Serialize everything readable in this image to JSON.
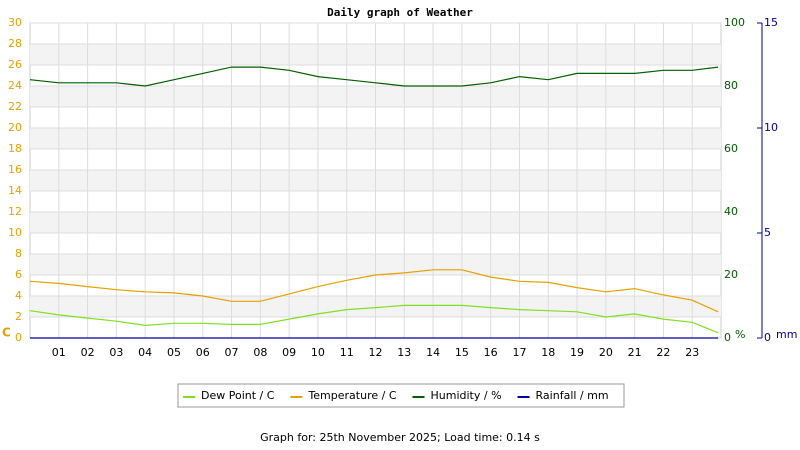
{
  "chart_data": {
    "type": "line",
    "title": "Daily graph of Weather",
    "footer": "Graph for: 25th November 2025; Load time: 0.14 s",
    "y_label": "C",
    "y2_label": "%",
    "y3_label": "mm",
    "x": [
      0,
      1,
      2,
      3,
      4,
      5,
      6,
      7,
      8,
      9,
      10,
      11,
      12,
      13,
      14,
      15,
      16,
      17,
      18,
      19,
      20,
      21,
      22,
      23,
      23.9
    ],
    "xlim": [
      0,
      24
    ],
    "xticks": [
      {
        "value": 1,
        "label": "01"
      },
      {
        "value": 2,
        "label": "02"
      },
      {
        "value": 3,
        "label": "03"
      },
      {
        "value": 4,
        "label": "04"
      },
      {
        "value": 5,
        "label": "05"
      },
      {
        "value": 6,
        "label": "06"
      },
      {
        "value": 7,
        "label": "07"
      },
      {
        "value": 8,
        "label": "08"
      },
      {
        "value": 9,
        "label": "09"
      },
      10,
      11,
      12,
      13,
      14,
      15,
      16,
      17,
      18,
      19,
      20,
      21,
      22,
      23
    ],
    "ylim": [
      0,
      30
    ],
    "yticks": [
      0,
      2,
      4,
      6,
      8,
      10,
      12,
      14,
      16,
      18,
      20,
      22,
      24,
      26,
      28,
      30
    ],
    "y2lim": [
      0,
      100
    ],
    "y2ticks": [
      0,
      20,
      40,
      60,
      80,
      100
    ],
    "y3lim": [
      0,
      15
    ],
    "y3ticks": [
      0,
      5,
      10,
      15
    ],
    "grid": true,
    "series": [
      {
        "name": "Dew Point / C",
        "color": "#80e020",
        "axis": "y",
        "values": [
          2.6,
          2.2,
          1.9,
          1.6,
          1.2,
          1.4,
          1.4,
          1.3,
          1.3,
          1.8,
          2.3,
          2.7,
          2.9,
          3.1,
          3.1,
          3.1,
          2.9,
          2.7,
          2.6,
          2.5,
          2.0,
          2.3,
          1.8,
          1.5,
          0.5
        ]
      },
      {
        "name": "Temperature / C",
        "color": "#e8a000",
        "axis": "y",
        "values": [
          5.4,
          5.2,
          4.9,
          4.6,
          4.4,
          4.3,
          4.0,
          3.5,
          3.5,
          4.2,
          4.9,
          5.5,
          6.0,
          6.2,
          6.5,
          6.5,
          5.8,
          5.4,
          5.3,
          4.8,
          4.4,
          4.7,
          4.1,
          3.6,
          2.5
        ]
      },
      {
        "name": "Humidity / %",
        "color": "#006000",
        "axis": "y2",
        "values": [
          82,
          81,
          81,
          81,
          80,
          82,
          84,
          86,
          86,
          85,
          83,
          82,
          81,
          80,
          80,
          80,
          81,
          83,
          82,
          84,
          84,
          84,
          85,
          85,
          86
        ]
      },
      {
        "name": "Rainfall / mm",
        "color": "#0000a0",
        "axis": "y3",
        "values": [
          0,
          0,
          0,
          0,
          0,
          0,
          0,
          0,
          0,
          0,
          0,
          0,
          0,
          0,
          0,
          0,
          0,
          0,
          0,
          0,
          0,
          0,
          0,
          0,
          0
        ]
      }
    ]
  }
}
